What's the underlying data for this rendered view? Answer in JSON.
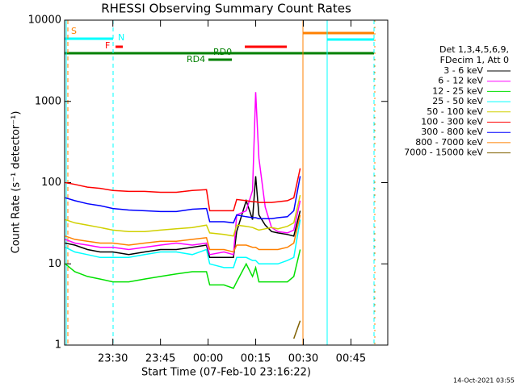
{
  "chart_data": {
    "type": "line",
    "title": "RHESSI Observing Summary Count Rates",
    "xlabel": "Start Time (07-Feb-10 23:16:22)",
    "ylabel": "Count Rate (s⁻¹ detector⁻¹)",
    "log_y": true,
    "xlim": [
      14.8,
      116.6
    ],
    "ylim": [
      1,
      10000
    ],
    "xticks": [
      {
        "value": 30,
        "label": "23:30"
      },
      {
        "value": 45,
        "label": "23:45"
      },
      {
        "value": 60,
        "label": "00:00"
      },
      {
        "value": 75,
        "label": "00:15"
      },
      {
        "value": 90,
        "label": "00:30"
      },
      {
        "value": 105,
        "label": "00:45"
      }
    ],
    "yticks": [
      1,
      10,
      100,
      1000,
      10000
    ],
    "legend_title": [
      "Det 1,3,4,5,6,9,",
      "FDecim 1, Att 0"
    ],
    "legend_position": "right",
    "flags": [
      "S",
      "N",
      "F",
      "RD0",
      "RD4"
    ],
    "footer": "14-Oct-2021 03:55",
    "x": [
      15,
      18,
      22,
      26,
      30,
      35,
      40,
      45,
      50,
      55,
      59.5,
      60.5,
      65,
      68,
      69,
      72,
      74,
      75,
      76,
      78,
      80,
      82,
      85,
      87,
      89
    ],
    "series": [
      {
        "name": "3 - 6 keV",
        "color": "#000000",
        "values": [
          18,
          17,
          15,
          14,
          14,
          13,
          14,
          15,
          15,
          16,
          17,
          12,
          12,
          12,
          25,
          60,
          35,
          120,
          40,
          30,
          25,
          24,
          23,
          22,
          45
        ]
      },
      {
        "name": "6 - 12 keV",
        "color": "#ff00ff",
        "values": [
          20,
          18,
          17,
          16,
          16,
          15,
          16,
          17,
          18,
          17,
          18,
          13,
          14,
          13,
          40,
          45,
          80,
          1300,
          200,
          50,
          28,
          25,
          24,
          26,
          60
        ]
      },
      {
        "name": "12 - 25 keV",
        "color": "#00e000",
        "values": [
          10,
          8,
          7,
          6.5,
          6,
          6,
          6.5,
          7,
          7.5,
          8,
          8,
          5.5,
          5.5,
          5,
          6,
          10,
          7,
          9,
          6,
          6,
          6,
          6,
          6,
          7,
          15
        ]
      },
      {
        "name": "25 - 50 keV",
        "color": "#00ffff",
        "values": [
          16,
          14,
          13,
          12,
          12,
          12,
          13,
          14,
          14,
          13,
          15,
          10,
          9,
          9,
          12,
          12,
          11,
          11,
          10,
          10,
          10,
          10,
          11,
          12,
          35
        ]
      },
      {
        "name": "50 - 100 keV",
        "color": "#d0d000",
        "values": [
          35,
          32,
          30,
          28,
          26,
          25,
          25,
          26,
          27,
          28,
          30,
          24,
          23,
          22,
          30,
          29,
          28,
          27,
          26,
          27,
          28,
          27,
          29,
          32,
          70
        ]
      },
      {
        "name": "100 - 300 keV",
        "color": "#ff0000",
        "values": [
          100,
          95,
          88,
          85,
          80,
          78,
          78,
          76,
          76,
          80,
          82,
          45,
          45,
          45,
          62,
          60,
          58,
          58,
          57,
          57,
          57,
          58,
          60,
          65,
          150
        ]
      },
      {
        "name": "300 - 800 keV",
        "color": "#0000ff",
        "values": [
          65,
          60,
          55,
          52,
          48,
          46,
          45,
          44,
          44,
          47,
          48,
          33,
          33,
          32,
          40,
          38,
          37,
          37,
          36,
          36,
          36,
          37,
          38,
          45,
          120
        ]
      },
      {
        "name": "800 - 7000 keV",
        "color": "#ff8000",
        "values": [
          22,
          20,
          19,
          18,
          18,
          17,
          18,
          19,
          19,
          20,
          21,
          15,
          15,
          14,
          17,
          17,
          16,
          16,
          15,
          15,
          15,
          15,
          16,
          18,
          40
        ]
      },
      {
        "name": "7000 - 15000 keV",
        "color": "#806000",
        "values": [
          null,
          null,
          null,
          null,
          null,
          null,
          null,
          null,
          null,
          null,
          null,
          null,
          null,
          null,
          null,
          null,
          null,
          null,
          null,
          null,
          null,
          null,
          null,
          1.2,
          2
        ]
      }
    ]
  }
}
